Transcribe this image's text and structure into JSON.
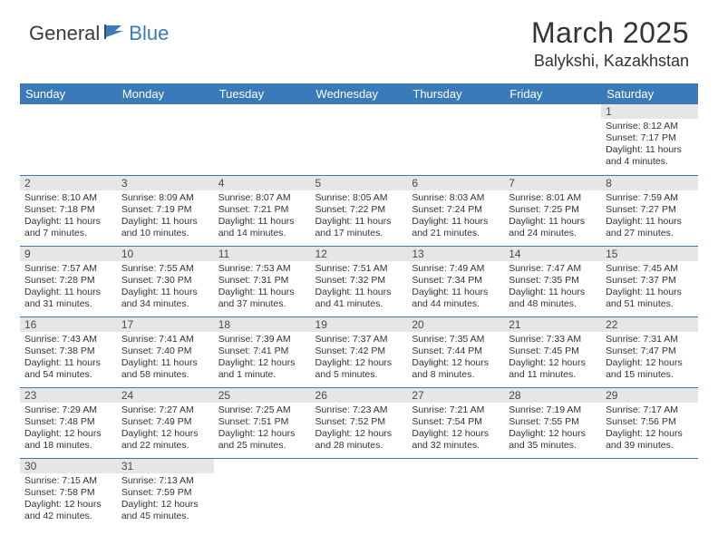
{
  "brand": {
    "part1": "General",
    "part2": "Blue"
  },
  "title": "March 2025",
  "location": "Balykshi, Kazakhstan",
  "colors": {
    "header_bg": "#3a7ab8",
    "header_text": "#ffffff",
    "daynum_bg": "#e6e6e6",
    "cell_border": "#3a7ab8",
    "body_text": "#333333"
  },
  "days_of_week": [
    "Sunday",
    "Monday",
    "Tuesday",
    "Wednesday",
    "Thursday",
    "Friday",
    "Saturday"
  ],
  "first_weekday_index": 6,
  "cells": [
    {
      "n": 1,
      "sunrise": "8:12 AM",
      "sunset": "7:17 PM",
      "daylight": "11 hours and 4 minutes."
    },
    {
      "n": 2,
      "sunrise": "8:10 AM",
      "sunset": "7:18 PM",
      "daylight": "11 hours and 7 minutes."
    },
    {
      "n": 3,
      "sunrise": "8:09 AM",
      "sunset": "7:19 PM",
      "daylight": "11 hours and 10 minutes."
    },
    {
      "n": 4,
      "sunrise": "8:07 AM",
      "sunset": "7:21 PM",
      "daylight": "11 hours and 14 minutes."
    },
    {
      "n": 5,
      "sunrise": "8:05 AM",
      "sunset": "7:22 PM",
      "daylight": "11 hours and 17 minutes."
    },
    {
      "n": 6,
      "sunrise": "8:03 AM",
      "sunset": "7:24 PM",
      "daylight": "11 hours and 21 minutes."
    },
    {
      "n": 7,
      "sunrise": "8:01 AM",
      "sunset": "7:25 PM",
      "daylight": "11 hours and 24 minutes."
    },
    {
      "n": 8,
      "sunrise": "7:59 AM",
      "sunset": "7:27 PM",
      "daylight": "11 hours and 27 minutes."
    },
    {
      "n": 9,
      "sunrise": "7:57 AM",
      "sunset": "7:28 PM",
      "daylight": "11 hours and 31 minutes."
    },
    {
      "n": 10,
      "sunrise": "7:55 AM",
      "sunset": "7:30 PM",
      "daylight": "11 hours and 34 minutes."
    },
    {
      "n": 11,
      "sunrise": "7:53 AM",
      "sunset": "7:31 PM",
      "daylight": "11 hours and 37 minutes."
    },
    {
      "n": 12,
      "sunrise": "7:51 AM",
      "sunset": "7:32 PM",
      "daylight": "11 hours and 41 minutes."
    },
    {
      "n": 13,
      "sunrise": "7:49 AM",
      "sunset": "7:34 PM",
      "daylight": "11 hours and 44 minutes."
    },
    {
      "n": 14,
      "sunrise": "7:47 AM",
      "sunset": "7:35 PM",
      "daylight": "11 hours and 48 minutes."
    },
    {
      "n": 15,
      "sunrise": "7:45 AM",
      "sunset": "7:37 PM",
      "daylight": "11 hours and 51 minutes."
    },
    {
      "n": 16,
      "sunrise": "7:43 AM",
      "sunset": "7:38 PM",
      "daylight": "11 hours and 54 minutes."
    },
    {
      "n": 17,
      "sunrise": "7:41 AM",
      "sunset": "7:40 PM",
      "daylight": "11 hours and 58 minutes."
    },
    {
      "n": 18,
      "sunrise": "7:39 AM",
      "sunset": "7:41 PM",
      "daylight": "12 hours and 1 minute."
    },
    {
      "n": 19,
      "sunrise": "7:37 AM",
      "sunset": "7:42 PM",
      "daylight": "12 hours and 5 minutes."
    },
    {
      "n": 20,
      "sunrise": "7:35 AM",
      "sunset": "7:44 PM",
      "daylight": "12 hours and 8 minutes."
    },
    {
      "n": 21,
      "sunrise": "7:33 AM",
      "sunset": "7:45 PM",
      "daylight": "12 hours and 11 minutes."
    },
    {
      "n": 22,
      "sunrise": "7:31 AM",
      "sunset": "7:47 PM",
      "daylight": "12 hours and 15 minutes."
    },
    {
      "n": 23,
      "sunrise": "7:29 AM",
      "sunset": "7:48 PM",
      "daylight": "12 hours and 18 minutes."
    },
    {
      "n": 24,
      "sunrise": "7:27 AM",
      "sunset": "7:49 PM",
      "daylight": "12 hours and 22 minutes."
    },
    {
      "n": 25,
      "sunrise": "7:25 AM",
      "sunset": "7:51 PM",
      "daylight": "12 hours and 25 minutes."
    },
    {
      "n": 26,
      "sunrise": "7:23 AM",
      "sunset": "7:52 PM",
      "daylight": "12 hours and 28 minutes."
    },
    {
      "n": 27,
      "sunrise": "7:21 AM",
      "sunset": "7:54 PM",
      "daylight": "12 hours and 32 minutes."
    },
    {
      "n": 28,
      "sunrise": "7:19 AM",
      "sunset": "7:55 PM",
      "daylight": "12 hours and 35 minutes."
    },
    {
      "n": 29,
      "sunrise": "7:17 AM",
      "sunset": "7:56 PM",
      "daylight": "12 hours and 39 minutes."
    },
    {
      "n": 30,
      "sunrise": "7:15 AM",
      "sunset": "7:58 PM",
      "daylight": "12 hours and 42 minutes."
    },
    {
      "n": 31,
      "sunrise": "7:13 AM",
      "sunset": "7:59 PM",
      "daylight": "12 hours and 45 minutes."
    }
  ],
  "labels": {
    "sunrise": "Sunrise:",
    "sunset": "Sunset:",
    "daylight": "Daylight:"
  }
}
